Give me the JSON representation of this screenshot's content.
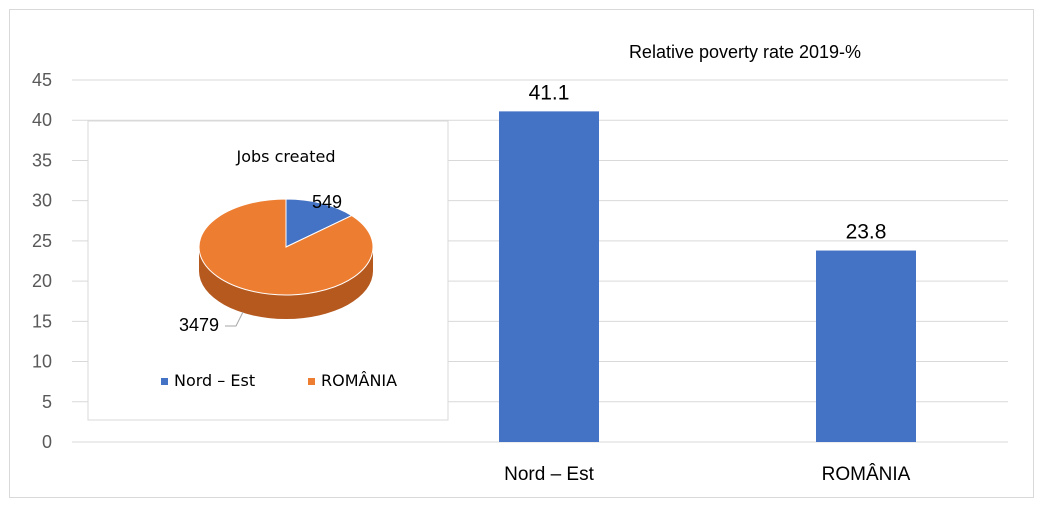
{
  "chart_data": [
    {
      "type": "bar",
      "title": "Relative poverty rate 2019-%",
      "categories": [
        "Nord – Est",
        "ROMÂNIA"
      ],
      "values": [
        41.1,
        23.8
      ],
      "data_labels": [
        "41.1",
        "23.8"
      ],
      "ylim": [
        0,
        45
      ],
      "yticks": [
        0,
        5,
        10,
        15,
        20,
        25,
        30,
        35,
        40,
        45
      ],
      "grid": true,
      "bar_color": "#4472c4"
    },
    {
      "type": "pie",
      "title": "Jobs created",
      "labels": [
        "Nord – Est",
        "ROMÂNIA"
      ],
      "values": [
        549,
        3479
      ],
      "data_labels": [
        "549",
        "3479"
      ],
      "colors": [
        "#4472c4",
        "#ed7d31"
      ],
      "legend_position": "bottom",
      "style": "3d"
    }
  ]
}
